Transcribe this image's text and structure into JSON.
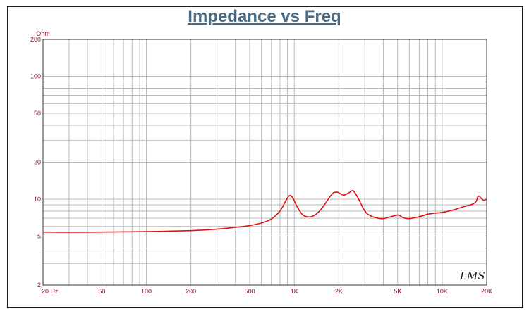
{
  "chart_data": {
    "type": "line",
    "title": "Impedance vs Freq",
    "ylabel": "Ohm",
    "xlabel": "",
    "x_scale": "log",
    "y_scale": "log",
    "xlim": [
      20,
      20000
    ],
    "ylim": [
      2,
      200
    ],
    "grid": true,
    "x_ticks": [
      {
        "value": 20,
        "label": "20  Hz"
      },
      {
        "value": 50,
        "label": "50"
      },
      {
        "value": 100,
        "label": "100"
      },
      {
        "value": 200,
        "label": "200"
      },
      {
        "value": 500,
        "label": "500"
      },
      {
        "value": 1000,
        "label": "1K"
      },
      {
        "value": 2000,
        "label": "2K"
      },
      {
        "value": 5000,
        "label": "5K"
      },
      {
        "value": 10000,
        "label": "10K"
      },
      {
        "value": 20000,
        "label": "20K"
      }
    ],
    "y_ticks": [
      {
        "value": 200,
        "label": "200"
      },
      {
        "value": 100,
        "label": "100"
      },
      {
        "value": 50,
        "label": "50"
      },
      {
        "value": 20,
        "label": "20"
      },
      {
        "value": 10,
        "label": "10"
      },
      {
        "value": 5,
        "label": "5"
      },
      {
        "value": 2,
        "label": "2"
      }
    ],
    "series": [
      {
        "color": "#e01010",
        "points": [
          [
            20,
            5.4
          ],
          [
            30,
            5.38
          ],
          [
            50,
            5.4
          ],
          [
            100,
            5.45
          ],
          [
            200,
            5.55
          ],
          [
            300,
            5.7
          ],
          [
            400,
            5.9
          ],
          [
            500,
            6.1
          ],
          [
            600,
            6.4
          ],
          [
            700,
            6.9
          ],
          [
            800,
            8.0
          ],
          [
            880,
            9.8
          ],
          [
            930,
            10.7
          ],
          [
            980,
            10.2
          ],
          [
            1050,
            8.6
          ],
          [
            1150,
            7.4
          ],
          [
            1300,
            7.2
          ],
          [
            1450,
            7.8
          ],
          [
            1600,
            9.0
          ],
          [
            1800,
            11.0
          ],
          [
            1950,
            11.4
          ],
          [
            2150,
            10.8
          ],
          [
            2350,
            11.3
          ],
          [
            2500,
            11.7
          ],
          [
            2700,
            10.2
          ],
          [
            3000,
            8.0
          ],
          [
            3300,
            7.3
          ],
          [
            3700,
            7.0
          ],
          [
            4000,
            6.95
          ],
          [
            4500,
            7.2
          ],
          [
            4900,
            7.4
          ],
          [
            5100,
            7.4
          ],
          [
            5500,
            7.05
          ],
          [
            6000,
            6.95
          ],
          [
            7000,
            7.2
          ],
          [
            8000,
            7.55
          ],
          [
            9000,
            7.7
          ],
          [
            10000,
            7.8
          ],
          [
            12000,
            8.2
          ],
          [
            14000,
            8.7
          ],
          [
            16000,
            9.1
          ],
          [
            17000,
            9.6
          ],
          [
            17500,
            10.6
          ],
          [
            18200,
            10.3
          ],
          [
            19000,
            9.8
          ],
          [
            20000,
            10.0
          ]
        ]
      }
    ]
  },
  "logo_text": "LMS",
  "colors": {
    "title": "#4a6a82",
    "grid": "#b8b8b8",
    "tick_label": "#7a1020",
    "trace": "#e01010",
    "frame": "#1a1a1a"
  }
}
